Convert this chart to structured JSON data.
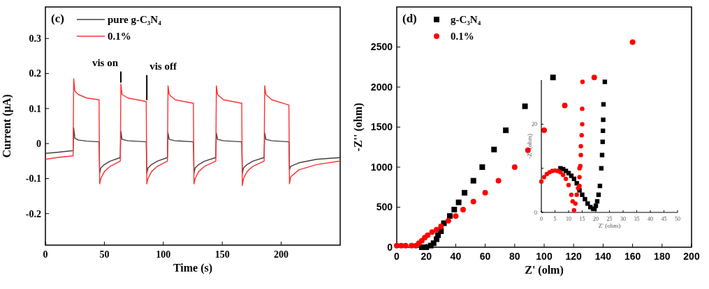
{
  "chart_data": [
    {
      "type": "line",
      "xlabel": "Time (s)",
      "ylabel": "Current (μA)",
      "xlim": [
        0,
        250
      ],
      "ylim": [
        -0.29,
        0.39
      ],
      "xticks": [
        0,
        50,
        100,
        150,
        200
      ],
      "yticks": [
        -0.2,
        -0.1,
        0,
        0.1,
        0.2,
        0.3
      ],
      "legend": "top left",
      "annotations": [
        "(c)",
        {
          "text": "vis on",
          "x": 64,
          "y": 0.17
        },
        {
          "text": "vis off",
          "x": 86,
          "y": 0.12
        }
      ],
      "x": [
        0,
        10,
        23.5,
        24,
        25,
        28,
        35,
        45.5,
        46,
        47,
        50,
        55,
        63.5,
        64,
        65,
        70,
        85.5,
        86,
        87,
        90,
        95,
        103.5,
        104,
        105,
        110,
        125.5,
        126,
        127,
        130,
        135,
        144.5,
        145,
        146,
        151,
        166.5,
        167,
        168,
        171,
        176,
        185.5,
        186,
        187,
        192,
        206.5,
        207,
        208,
        215,
        230,
        250
      ],
      "series": [
        {
          "name": "pure g-C₃N₄",
          "color": "#404040",
          "values": [
            -0.028,
            -0.025,
            -0.02,
            0.045,
            0.015,
            0.01,
            0.007,
            0.005,
            -0.085,
            -0.07,
            -0.06,
            -0.05,
            -0.04,
            0.035,
            0.012,
            0.008,
            0.005,
            -0.085,
            -0.07,
            -0.06,
            -0.05,
            -0.04,
            0.03,
            0.012,
            0.008,
            0.005,
            -0.085,
            -0.07,
            -0.06,
            -0.05,
            -0.04,
            0.03,
            0.012,
            0.008,
            0.005,
            -0.085,
            -0.07,
            -0.06,
            -0.05,
            -0.04,
            0.03,
            0.012,
            0.008,
            0.005,
            -0.075,
            -0.065,
            -0.055,
            -0.045,
            -0.04
          ]
        },
        {
          "name": "0.1%",
          "color": "#ff3030",
          "values": [
            -0.045,
            -0.04,
            -0.035,
            0.185,
            0.15,
            0.14,
            0.13,
            0.125,
            -0.115,
            -0.1,
            -0.08,
            -0.065,
            -0.05,
            0.17,
            0.14,
            0.13,
            0.12,
            -0.115,
            -0.1,
            -0.08,
            -0.065,
            -0.05,
            0.165,
            0.14,
            0.125,
            0.115,
            -0.115,
            -0.1,
            -0.08,
            -0.065,
            -0.05,
            0.165,
            0.14,
            0.125,
            0.115,
            -0.12,
            -0.1,
            -0.08,
            -0.065,
            -0.05,
            0.165,
            0.14,
            0.125,
            0.11,
            -0.115,
            -0.095,
            -0.075,
            -0.06,
            -0.05
          ]
        }
      ]
    },
    {
      "type": "scatter",
      "xlabel": "Z' (olm)",
      "ylabel": "-Z'' (ohm)",
      "xlim": [
        0,
        200
      ],
      "ylim": [
        0,
        3000
      ],
      "xticks": [
        0,
        20,
        40,
        60,
        80,
        100,
        120,
        140,
        160,
        180,
        200
      ],
      "yticks": [
        0,
        500,
        1000,
        1500,
        2000,
        2500
      ],
      "legend": "top left",
      "annotations": [
        "(d)"
      ],
      "series": [
        {
          "name": "g-C₃N₄",
          "color": "#000000",
          "marker": "square",
          "x": [
            17,
            20,
            23,
            25,
            27,
            28,
            30,
            32,
            36,
            39,
            42,
            46,
            52,
            58,
            66,
            74,
            87,
            106
          ],
          "values": [
            0,
            0,
            20,
            50,
            100,
            150,
            200,
            300,
            390,
            470,
            560,
            680,
            830,
            1000,
            1220,
            1460,
            1760,
            2120
          ]
        },
        {
          "name": "0.1%",
          "color": "#ff0000",
          "marker": "circle",
          "x": [
            0,
            3,
            6,
            10,
            13,
            15,
            17,
            19,
            21,
            24,
            27,
            30,
            35,
            40,
            45,
            52,
            60,
            69,
            80,
            89,
            100,
            114,
            134,
            160
          ],
          "values": [
            20,
            20,
            20,
            20,
            20,
            50,
            80,
            120,
            150,
            190,
            220,
            260,
            330,
            390,
            470,
            570,
            680,
            830,
            1000,
            1210,
            1460,
            1770,
            2120,
            2560
          ]
        }
      ]
    },
    {
      "type": "scatter",
      "xlabel": "Z' (ohm)",
      "ylabel": "-Z'' (ohm)",
      "xlim": [
        0,
        50
      ],
      "ylim": [
        0,
        30
      ],
      "xticks": [
        0,
        5,
        10,
        15,
        20,
        25,
        30,
        35,
        40,
        45,
        50
      ],
      "yticks": [
        0,
        {
          "value": 10,
          "label": null
        },
        20
      ],
      "series": [
        {
          "color": "#000000",
          "marker": "square",
          "x": [
            7,
            8,
            9,
            10,
            11,
            12,
            13,
            14,
            15,
            16,
            17,
            18,
            19,
            19.5,
            20,
            20.5,
            21,
            21.5,
            22,
            22.3,
            22.5,
            22.6,
            22.7,
            22.8,
            23.3
          ],
          "values": [
            10,
            9.8,
            9.4,
            8.9,
            8.3,
            7.6,
            6.6,
            5,
            4,
            3,
            2,
            1.2,
            0.8,
            0.8,
            1.5,
            2.5,
            4,
            6,
            10,
            13,
            16,
            18.5,
            21,
            24.5,
            29.6
          ]
        },
        {
          "color": "#ff0000",
          "marker": "circle",
          "x": [
            0,
            1,
            2,
            3,
            4,
            5,
            6,
            7,
            8,
            9,
            10,
            11,
            11.5,
            12,
            12.5,
            13,
            13.5,
            14,
            14,
            14,
            14.3,
            14.5,
            14.5,
            14.8,
            15,
            15,
            15.1
          ],
          "values": [
            7,
            8,
            8.7,
            9.1,
            9.4,
            9.5,
            9.4,
            9.1,
            8.5,
            7.6,
            6.2,
            4,
            2.5,
            0.5,
            2,
            4,
            5.5,
            6,
            8,
            10,
            10.5,
            13,
            15,
            17.5,
            20,
            23.5,
            29.6
          ]
        }
      ]
    }
  ]
}
